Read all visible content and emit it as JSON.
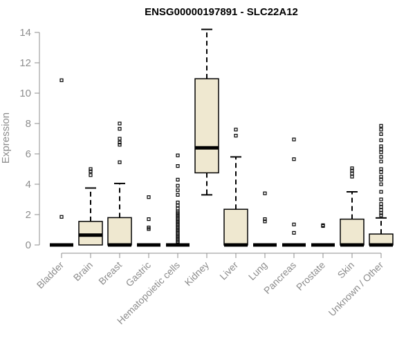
{
  "chart_data": {
    "type": "boxplot",
    "title": "ENSG00000197891 - SLC22A12",
    "xlabel": "",
    "ylabel": "Expression",
    "ylim": [
      0,
      14
    ],
    "yticks": [
      0,
      2,
      4,
      6,
      8,
      10,
      12,
      14
    ],
    "box_fill": "#efe8d0",
    "line_color": "#000000",
    "axis_color": "#8c8c8c",
    "categories": [
      "Bladder",
      "Brain",
      "Breast",
      "Gastric",
      "Hematopoietic cells",
      "Kidney",
      "Liver",
      "Lung",
      "Pancreas",
      "Prostate",
      "Skin",
      "Unknown / Other"
    ],
    "boxes": [
      {
        "label": "Bladder",
        "q1": 0,
        "median": 0,
        "q3": 0,
        "whisker_low": 0,
        "whisker_high": 0,
        "outliers": [
          1.85,
          10.85
        ]
      },
      {
        "label": "Brain",
        "q1": 0,
        "median": 0.65,
        "q3": 1.55,
        "whisker_low": 0,
        "whisker_high": 3.75,
        "outliers": [
          4.6,
          4.85,
          5.0
        ]
      },
      {
        "label": "Breast",
        "q1": 0,
        "median": 0,
        "q3": 1.8,
        "whisker_low": 0,
        "whisker_high": 4.05,
        "outliers": [
          5.45,
          6.6,
          6.75,
          7.0,
          7.65,
          8.0
        ]
      },
      {
        "label": "Gastric",
        "q1": 0,
        "median": 0,
        "q3": 0,
        "whisker_low": 0,
        "whisker_high": 0,
        "outliers": [
          1.05,
          1.15,
          1.7,
          3.15
        ]
      },
      {
        "label": "Hematopoietic cells",
        "q1": 0,
        "median": 0,
        "q3": 0,
        "whisker_low": 0,
        "whisker_high": 0,
        "outliers": [
          0.1,
          0.2,
          0.3,
          0.4,
          0.5,
          0.6,
          0.7,
          0.8,
          0.9,
          1.0,
          1.1,
          1.2,
          1.3,
          1.4,
          1.5,
          1.6,
          1.7,
          1.8,
          1.9,
          2.0,
          2.1,
          2.2,
          2.4,
          2.6,
          2.8,
          3.3,
          3.6,
          3.9,
          4.3,
          5.2,
          5.9
        ]
      },
      {
        "label": "Kidney",
        "q1": 4.75,
        "median": 6.4,
        "q3": 10.95,
        "whisker_low": 3.3,
        "whisker_high": 14.2,
        "outliers": []
      },
      {
        "label": "Liver",
        "q1": 0,
        "median": 0,
        "q3": 2.35,
        "whisker_low": 0,
        "whisker_high": 5.8,
        "outliers": [
          7.2,
          7.6
        ]
      },
      {
        "label": "Lung",
        "q1": 0,
        "median": 0,
        "q3": 0,
        "whisker_low": 0,
        "whisker_high": 0,
        "outliers": [
          1.55,
          1.7,
          3.4
        ]
      },
      {
        "label": "Pancreas",
        "q1": 0,
        "median": 0,
        "q3": 0,
        "whisker_low": 0,
        "whisker_high": 0,
        "outliers": [
          0.8,
          1.35,
          5.65,
          6.95
        ]
      },
      {
        "label": "Prostate",
        "q1": 0,
        "median": 0,
        "q3": 0,
        "whisker_low": 0,
        "whisker_high": 0,
        "outliers": [
          1.25,
          1.3
        ]
      },
      {
        "label": "Skin",
        "q1": 0,
        "median": 0,
        "q3": 1.7,
        "whisker_low": 0,
        "whisker_high": 3.5,
        "outliers": [
          4.5,
          4.7,
          4.9,
          5.05
        ]
      },
      {
        "label": "Unknown / Other",
        "q1": 0,
        "median": 0,
        "q3": 0.72,
        "whisker_low": 0,
        "whisker_high": 1.78,
        "outliers": [
          1.95,
          2.1,
          2.3,
          2.5,
          2.7,
          3.0,
          3.5,
          4.0,
          4.3,
          4.5,
          4.8,
          5.0,
          5.5,
          5.8,
          6.1,
          6.3,
          6.5,
          6.9,
          7.3,
          7.6,
          7.85
        ]
      }
    ]
  }
}
